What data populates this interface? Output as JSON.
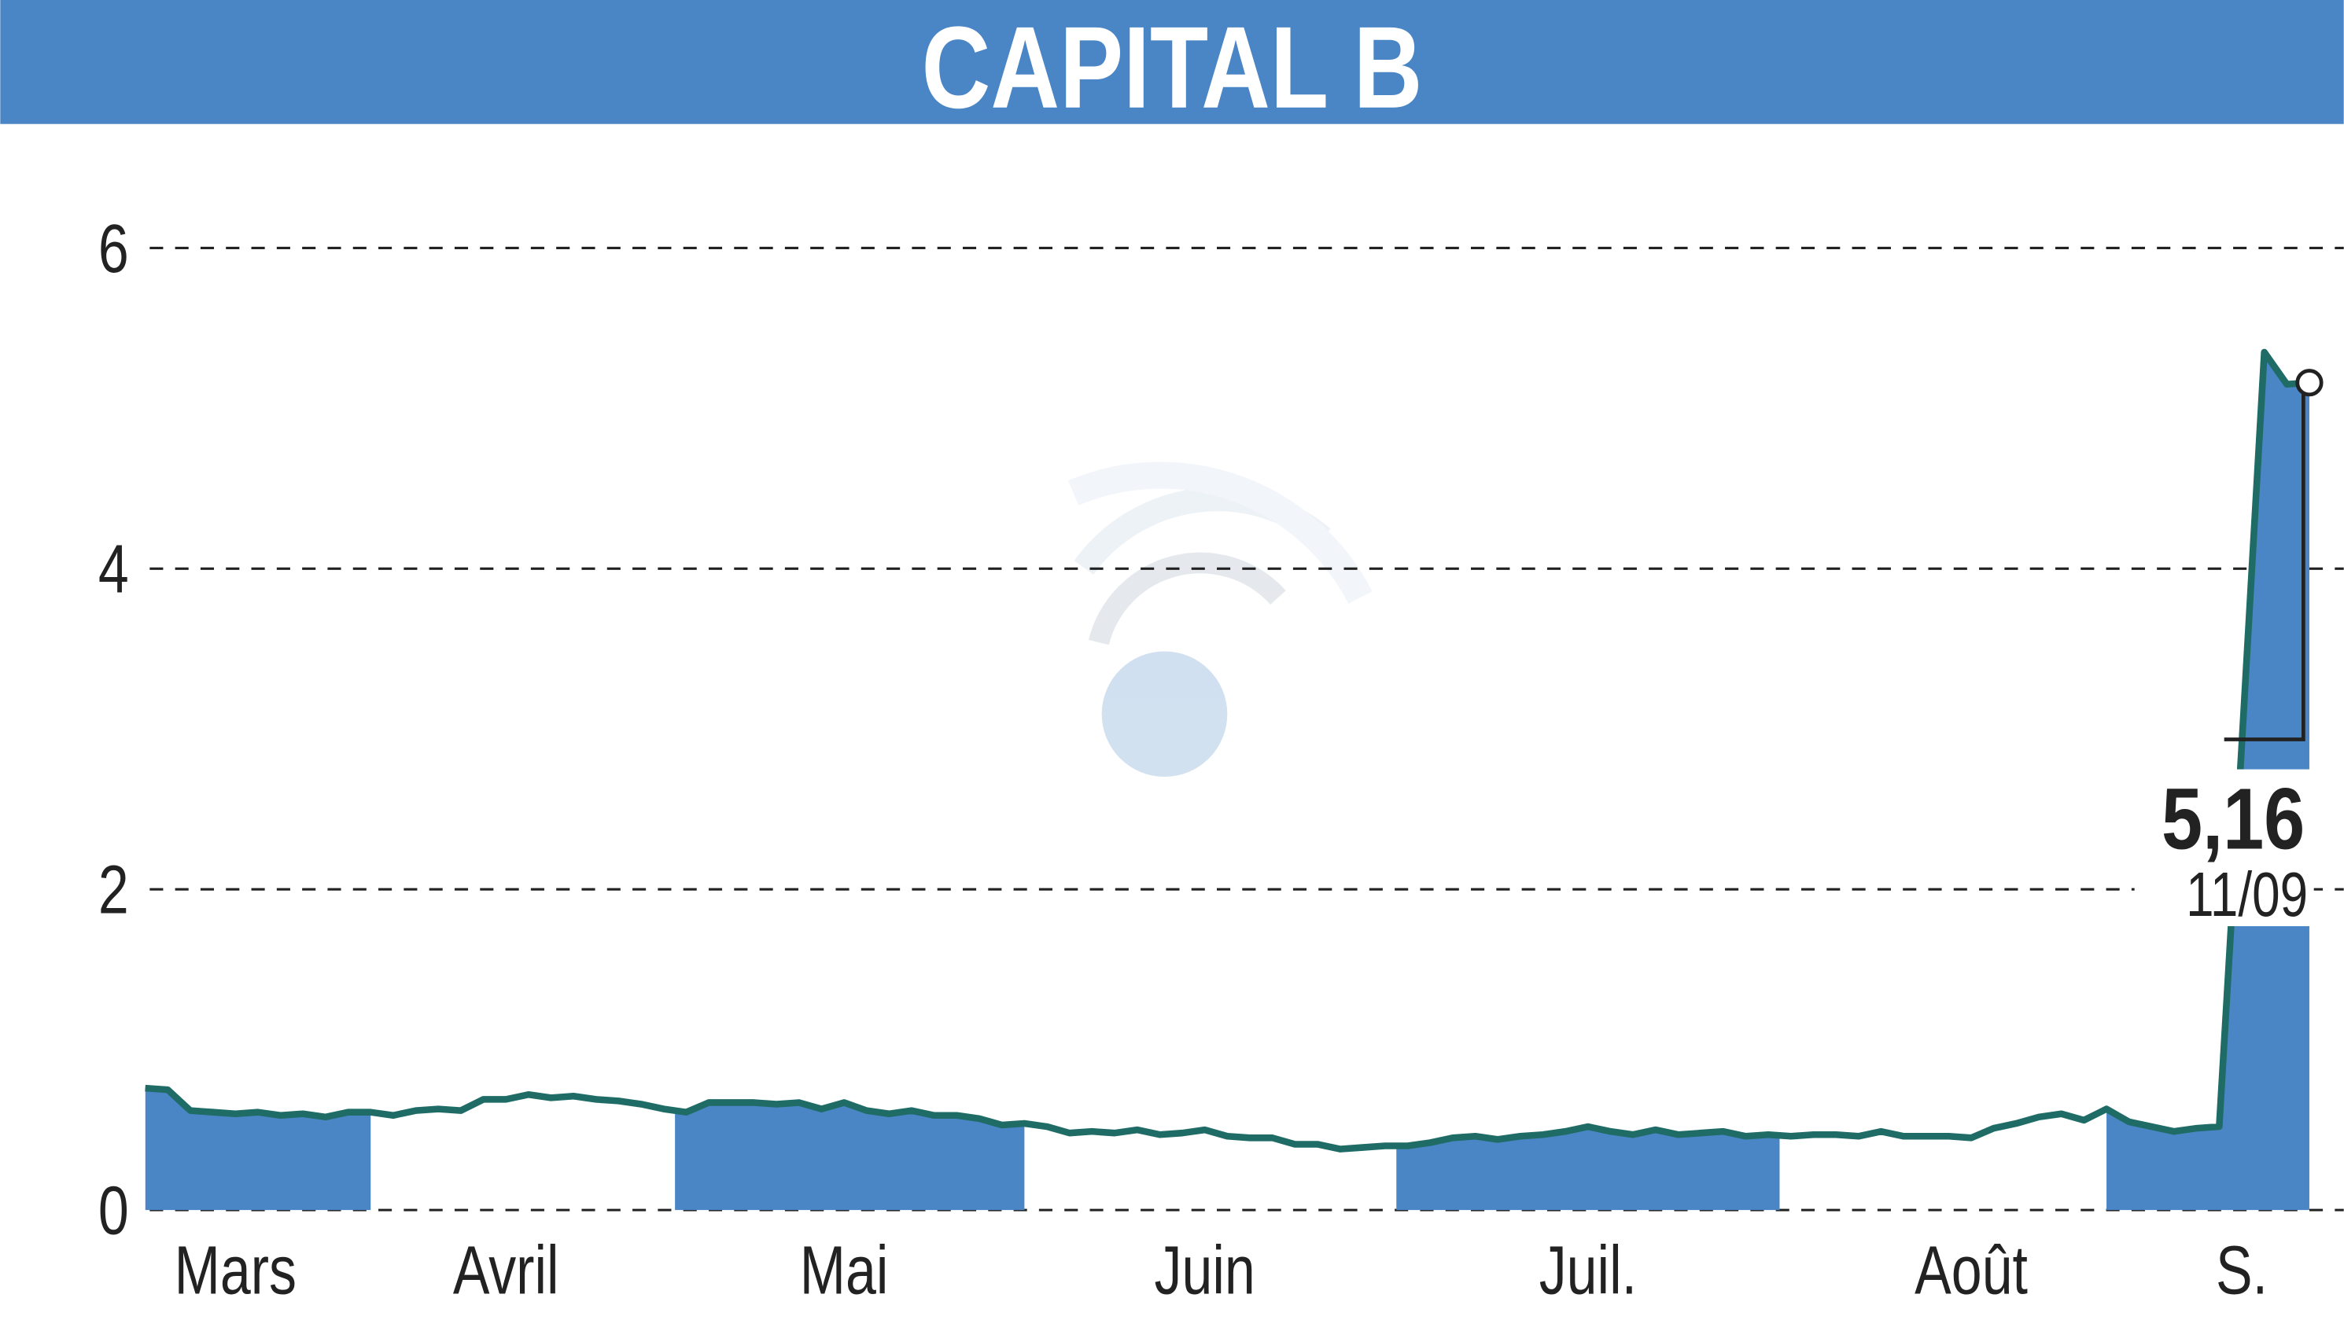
{
  "chart_data": {
    "type": "area",
    "title": "CAPITAL B",
    "categories": [
      null,
      null,
      null,
      null,
      "Mars",
      null,
      null,
      null,
      null,
      null,
      null,
      null,
      null,
      null,
      null,
      null,
      "Avril",
      null,
      null,
      null,
      null,
      null,
      null,
      null,
      null,
      null,
      null,
      null,
      null,
      null,
      null,
      "Mai",
      null,
      null,
      null,
      null,
      null,
      null,
      null,
      null,
      null,
      null,
      null,
      null,
      null,
      null,
      null,
      "Juin",
      null,
      null,
      null,
      null,
      null,
      null,
      null,
      null,
      null,
      null,
      null,
      null,
      null,
      null,
      null,
      null,
      "Juil.",
      null,
      null,
      null,
      null,
      null,
      null,
      null,
      null,
      null,
      null,
      null,
      null,
      null,
      null,
      null,
      null,
      "Août",
      null,
      null,
      null,
      null,
      null,
      null,
      null,
      null,
      null,
      null,
      null,
      "S.",
      null,
      null,
      null
    ],
    "series": [
      {
        "color": "#1f6b66",
        "fill": "#4a86c5",
        "values": [
          0.76,
          0.75,
          0.62,
          0.61,
          0.6,
          0.61,
          0.59,
          0.6,
          0.58,
          0.61,
          0.61,
          0.59,
          0.62,
          0.63,
          0.62,
          0.69,
          0.69,
          0.72,
          0.7,
          0.71,
          0.69,
          0.68,
          0.66,
          0.63,
          0.61,
          0.67,
          0.67,
          0.67,
          0.66,
          0.67,
          0.63,
          0.67,
          0.62,
          0.6,
          0.62,
          0.59,
          0.59,
          0.57,
          0.53,
          0.54,
          0.52,
          0.48,
          0.49,
          0.48,
          0.5,
          0.47,
          0.48,
          0.5,
          0.46,
          0.45,
          0.45,
          0.41,
          0.41,
          0.38,
          0.39,
          0.4,
          0.4,
          0.42,
          0.45,
          0.46,
          0.44,
          0.46,
          0.47,
          0.49,
          0.52,
          0.49,
          0.47,
          0.5,
          0.47,
          0.48,
          0.49,
          0.46,
          0.47,
          0.46,
          0.47,
          0.47,
          0.46,
          0.49,
          0.46,
          0.46,
          0.46,
          0.45,
          0.51,
          0.54,
          0.58,
          0.6,
          0.56,
          0.63,
          0.55,
          0.52,
          0.49,
          0.51,
          0.52,
          2.9,
          5.35,
          5.15,
          5.16
        ],
        "value_labels": [
          null,
          null,
          null,
          null,
          null,
          null,
          null,
          null,
          null,
          null,
          null,
          null,
          null,
          null,
          null,
          null,
          null,
          null,
          null,
          null,
          null,
          null,
          null,
          null,
          null,
          null,
          null,
          null,
          null,
          null,
          null,
          null,
          null,
          null,
          null,
          null,
          null,
          null,
          null,
          null,
          null,
          null,
          null,
          null,
          null,
          null,
          null,
          null,
          null,
          null,
          null,
          null,
          null,
          null,
          null,
          null,
          null,
          null,
          null,
          null,
          null,
          null,
          null,
          null,
          null,
          null,
          null,
          null,
          null,
          null,
          null,
          null,
          null,
          null,
          null,
          null,
          null,
          null,
          null,
          null,
          null,
          null,
          null,
          null,
          null,
          null,
          null,
          null,
          null,
          null,
          null,
          null,
          null,
          null,
          null,
          null,
          "5,16"
        ]
      }
    ],
    "last_date": "11/09",
    "ylim": [
      0,
      6
    ],
    "yticks": [
      0,
      2,
      4,
      6
    ],
    "grid": true
  }
}
